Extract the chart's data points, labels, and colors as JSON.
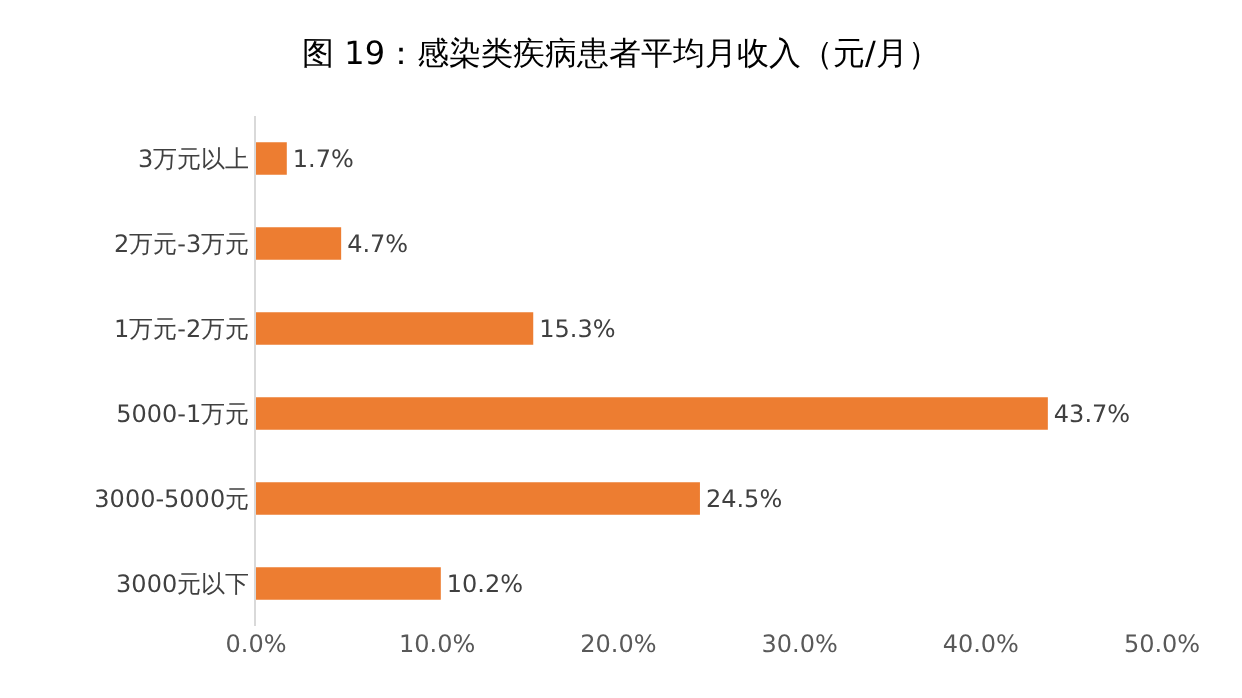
{
  "chart_data": {
    "type": "bar",
    "orientation": "horizontal",
    "title": "图 19：感染类疾病患者平均月收入（元/月）",
    "categories": [
      "3万元以上",
      "2万元-3万元",
      "1万元-2万元",
      "5000-1万元",
      "3000-5000元",
      "3000元以下"
    ],
    "values": [
      1.7,
      4.7,
      15.3,
      43.7,
      24.5,
      10.2
    ],
    "value_labels": [
      "1.7%",
      "4.7%",
      "15.3%",
      "43.7%",
      "24.5%",
      "10.2%"
    ],
    "color": "#ed7d31",
    "xlim": [
      0,
      50
    ],
    "xticks": [
      {
        "value": 0,
        "label": "0.0%"
      },
      {
        "value": 10,
        "label": "10.0%"
      },
      {
        "value": 20,
        "label": "20.0%"
      },
      {
        "value": 30,
        "label": "30.0%"
      },
      {
        "value": 40,
        "label": "40.0%"
      },
      {
        "value": 50,
        "label": "50.0%"
      }
    ],
    "grid": false
  }
}
